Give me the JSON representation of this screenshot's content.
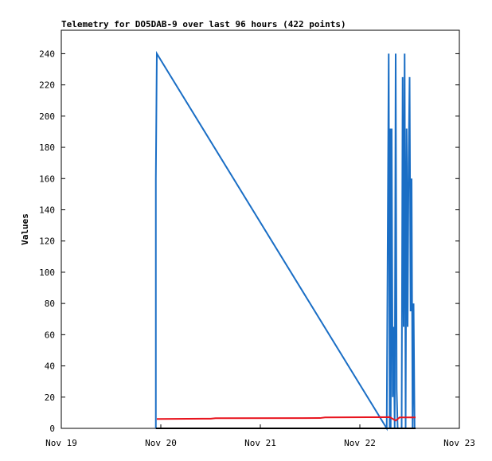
{
  "chart_data": {
    "type": "line",
    "title": "Telemetry for DO5DAB-9 over last 96 hours (422 points)",
    "y_label": "Values",
    "xlim": [
      19,
      23
    ],
    "xticks": [
      {
        "value": 19,
        "label": "Nov 19"
      },
      {
        "value": 20,
        "label": "Nov 20"
      },
      {
        "value": 21,
        "label": "Nov 21"
      },
      {
        "value": 22,
        "label": "Nov 22"
      },
      {
        "value": 23,
        "label": "Nov 23"
      }
    ],
    "ylim": [
      0,
      255
    ],
    "yticks": [
      0,
      20,
      40,
      60,
      80,
      100,
      120,
      140,
      160,
      180,
      200,
      220,
      240
    ],
    "grid": false,
    "series": [
      {
        "color": "#1a6ec5",
        "x": [
          19.95,
          19.95,
          19.96,
          22.27,
          22.29,
          22.3,
          22.305,
          22.31,
          22.32,
          22.33,
          22.34,
          22.35,
          22.36,
          22.37,
          22.38,
          22.42,
          22.43,
          22.44,
          22.45,
          22.46,
          22.47,
          22.48,
          22.49,
          22.5,
          22.51,
          22.52,
          22.53,
          22.54,
          22.55
        ],
        "values": [
          0,
          160,
          240,
          0,
          240,
          0,
          192,
          0,
          192,
          20,
          65,
          0,
          240,
          25,
          0,
          0,
          225,
          65,
          240,
          0,
          192,
          65,
          170,
          225,
          75,
          160,
          0,
          80,
          0
        ]
      },
      {
        "color": "#e8141e",
        "x": [
          19.96,
          20.5,
          20.55,
          21.6,
          21.65,
          22.3,
          22.36,
          22.4,
          22.56
        ],
        "values": [
          6,
          6.2,
          6.5,
          6.6,
          7,
          7.2,
          5,
          7,
          7
        ]
      },
      {
        "color": "#000000",
        "x": [
          19.95,
          22.56
        ],
        "values": [
          0,
          0
        ]
      }
    ]
  }
}
